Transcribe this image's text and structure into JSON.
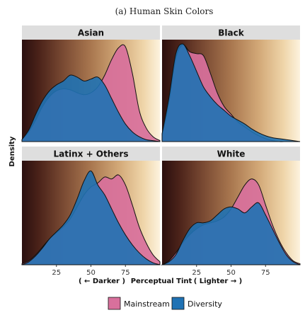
{
  "chart_data": {
    "type": "area",
    "title": "(a) Human Skin Colors",
    "ylabel": "Density",
    "xlabel": "Perceptual Tint",
    "xlabel_left": "( ← Darker )",
    "xlabel_right": "( Lighter → )",
    "xlim": [
      0,
      100
    ],
    "x_ticks": [
      25,
      50,
      75
    ],
    "grid": false,
    "legend_position": "bottom",
    "background": "dark-to-light skin tone gradient",
    "series_names": [
      "Mainstream",
      "Diversity"
    ],
    "colors": {
      "Mainstream": "#d8709c",
      "Diversity": "#1f72b4"
    },
    "panels": [
      {
        "name": "Asian",
        "x": [
          0,
          5,
          10,
          15,
          20,
          25,
          30,
          35,
          40,
          45,
          50,
          55,
          60,
          65,
          70,
          75,
          80,
          85,
          90,
          95,
          100
        ],
        "series": [
          {
            "name": "Mainstream",
            "values": [
              0.02,
              0.1,
              0.22,
              0.36,
              0.46,
              0.52,
              0.54,
              0.53,
              0.5,
              0.48,
              0.5,
              0.56,
              0.68,
              0.84,
              0.96,
              0.97,
              0.7,
              0.32,
              0.14,
              0.05,
              0.01
            ]
          },
          {
            "name": "Diversity",
            "values": [
              0.02,
              0.12,
              0.28,
              0.42,
              0.52,
              0.58,
              0.62,
              0.68,
              0.66,
              0.62,
              0.64,
              0.66,
              0.58,
              0.44,
              0.3,
              0.18,
              0.1,
              0.05,
              0.02,
              0.01,
              0.0
            ]
          }
        ]
      },
      {
        "name": "Black",
        "x": [
          0,
          5,
          10,
          15,
          20,
          25,
          30,
          35,
          40,
          45,
          50,
          55,
          60,
          65,
          70,
          75,
          80,
          85,
          90,
          95,
          100
        ],
        "series": [
          {
            "name": "Mainstream",
            "values": [
              0.05,
              0.4,
              0.85,
              0.99,
              0.92,
              0.9,
              0.88,
              0.7,
              0.5,
              0.36,
              0.28,
              0.2,
              0.15,
              0.1,
              0.06,
              0.03,
              0.01,
              0.0,
              0.0,
              0.0,
              0.0
            ]
          },
          {
            "name": "Diversity",
            "values": [
              0.08,
              0.45,
              0.9,
              1.0,
              0.88,
              0.72,
              0.56,
              0.46,
              0.38,
              0.32,
              0.26,
              0.22,
              0.18,
              0.13,
              0.09,
              0.06,
              0.04,
              0.03,
              0.02,
              0.01,
              0.0
            ]
          }
        ]
      },
      {
        "name": "Latinx + Others",
        "x": [
          0,
          5,
          10,
          15,
          20,
          25,
          30,
          35,
          40,
          45,
          50,
          55,
          60,
          65,
          70,
          75,
          80,
          85,
          90,
          95,
          100
        ],
        "series": [
          {
            "name": "Mainstream",
            "values": [
              0.01,
              0.04,
              0.1,
              0.18,
              0.26,
              0.32,
              0.38,
              0.46,
              0.58,
              0.7,
              0.78,
              0.82,
              0.88,
              0.86,
              0.9,
              0.8,
              0.6,
              0.38,
              0.22,
              0.1,
              0.03
            ]
          },
          {
            "name": "Diversity",
            "values": [
              0.0,
              0.03,
              0.09,
              0.17,
              0.26,
              0.33,
              0.4,
              0.5,
              0.66,
              0.84,
              0.94,
              0.8,
              0.7,
              0.56,
              0.42,
              0.3,
              0.2,
              0.12,
              0.06,
              0.02,
              0.0
            ]
          }
        ]
      },
      {
        "name": "White",
        "x": [
          0,
          5,
          10,
          15,
          20,
          25,
          30,
          35,
          40,
          45,
          50,
          55,
          60,
          65,
          70,
          75,
          80,
          85,
          90,
          95,
          100
        ],
        "series": [
          {
            "name": "Mainstream",
            "values": [
              0.0,
              0.04,
              0.12,
              0.22,
              0.3,
              0.36,
              0.4,
              0.42,
              0.44,
              0.48,
              0.56,
              0.68,
              0.8,
              0.86,
              0.8,
              0.6,
              0.4,
              0.24,
              0.12,
              0.04,
              0.01
            ]
          },
          {
            "name": "Diversity",
            "values": [
              0.0,
              0.03,
              0.1,
              0.24,
              0.36,
              0.42,
              0.42,
              0.44,
              0.5,
              0.56,
              0.58,
              0.56,
              0.52,
              0.58,
              0.62,
              0.5,
              0.36,
              0.22,
              0.1,
              0.03,
              0.0
            ]
          }
        ]
      }
    ]
  }
}
